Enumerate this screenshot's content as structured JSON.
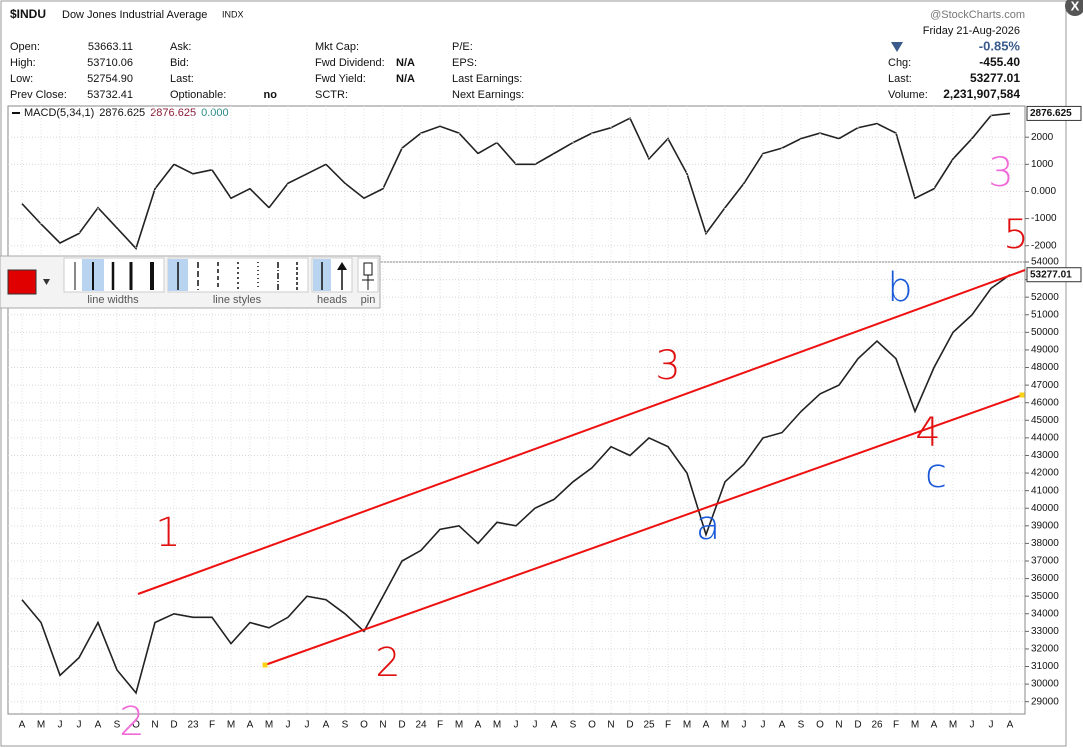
{
  "header": {
    "symbol": "$INDU",
    "name": "Dow Jones Industrial Average",
    "exchange": "INDX",
    "source": "@StockCharts.com",
    "date": "Friday 21-Aug-2026",
    "change_pct": "-0.85%",
    "columns": [
      [
        {
          "label": "Open:",
          "value": "53663.11"
        },
        {
          "label": "High:",
          "value": "53710.06"
        },
        {
          "label": "Low:",
          "value": "52754.90"
        },
        {
          "label": "Prev Close:",
          "value": "53732.41"
        }
      ],
      [
        {
          "label": "Ask:"
        },
        {
          "label": "Bid:"
        },
        {
          "label": "Last:"
        },
        {
          "label": "Optionable:",
          "value": "no"
        }
      ],
      [
        {
          "label": "Mkt Cap:"
        },
        {
          "label": "Fwd Dividend:",
          "value": "N/A"
        },
        {
          "label": "Fwd Yield:",
          "value": "N/A"
        },
        {
          "label": "SCTR:"
        }
      ],
      [
        {
          "label": "P/E:"
        },
        {
          "label": "EPS:"
        },
        {
          "label": "Last Earnings:"
        },
        {
          "label": "Next Earnings:"
        }
      ]
    ],
    "quote": [
      {
        "label": "Chg:",
        "value": "-455.40"
      },
      {
        "label": "Last:",
        "value": "53277.01"
      },
      {
        "label": "Volume:",
        "value": "2,231,907,584"
      }
    ]
  },
  "toolbar": [
    "line widths",
    "line styles",
    "heads",
    "pin"
  ],
  "annotations": [
    "1",
    "2",
    "3",
    "4",
    "5",
    "a",
    "b",
    "c",
    "3",
    "2"
  ],
  "chart_data": [
    {
      "type": "line",
      "legend": [
        "MACD(5,34,1)",
        "2876.625",
        "2876.625",
        "0.000"
      ],
      "color": "#222222",
      "values": [
        -450,
        -1200,
        -1900,
        -1550,
        -600,
        -1350,
        -2100,
        100,
        1000,
        650,
        800,
        -250,
        100,
        -600,
        300,
        650,
        1000,
        300,
        -250,
        100,
        1600,
        2150,
        2400,
        2150,
        1400,
        1800,
        1000,
        1000,
        1400,
        1800,
        2150,
        2350,
        2700,
        1200,
        1950,
        650,
        -1550,
        -600,
        300,
        1400,
        1600,
        1950,
        2150,
        1950,
        2350,
        2500,
        2150,
        -250,
        100,
        1200,
        1950,
        2800,
        2876.625
      ],
      "ylim": [
        -2600,
        3150
      ],
      "yticks": [
        2000,
        1000,
        {
          "value": 0,
          "label": "0.000"
        },
        -1000,
        -2000
      ],
      "grid": true
    },
    {
      "type": "line",
      "color": "#222222",
      "categories": [
        "A",
        "M",
        "J",
        "J",
        "A",
        "S",
        "O",
        "N",
        "D",
        "23",
        "F",
        "M",
        "A",
        "M",
        "J",
        "J",
        "A",
        "S",
        "O",
        "N",
        "D",
        "24",
        "F",
        "M",
        "A",
        "M",
        "J",
        "J",
        "A",
        "S",
        "O",
        "N",
        "D",
        "25",
        "F",
        "M",
        "A",
        "M",
        "J",
        "J",
        "A",
        "S",
        "O",
        "N",
        "D",
        "26",
        "F",
        "M",
        "A",
        "M",
        "J",
        "J",
        "A"
      ],
      "values": [
        34800,
        33500,
        30500,
        31500,
        33500,
        30800,
        29500,
        33500,
        34000,
        33800,
        33800,
        32300,
        33500,
        33200,
        33800,
        35000,
        34800,
        34000,
        33000,
        35000,
        37000,
        37600,
        38800,
        39000,
        38000,
        39200,
        39000,
        40000,
        40500,
        41500,
        42300,
        43500,
        43000,
        44000,
        43500,
        42000,
        38500,
        41500,
        42500,
        44000,
        44300,
        45500,
        46500,
        47000,
        48500,
        49500,
        48500,
        45500,
        48000,
        50000,
        51000,
        52500,
        53277.01
      ],
      "ylim": [
        28300,
        54000
      ],
      "yticks": [
        29000,
        30000,
        31000,
        32000,
        33000,
        34000,
        35000,
        36000,
        37000,
        38000,
        39000,
        40000,
        41000,
        42000,
        43000,
        44000,
        45000,
        46000,
        47000,
        48000,
        49000,
        50000,
        51000,
        52000,
        53000,
        54000
      ],
      "grid": true
    }
  ]
}
